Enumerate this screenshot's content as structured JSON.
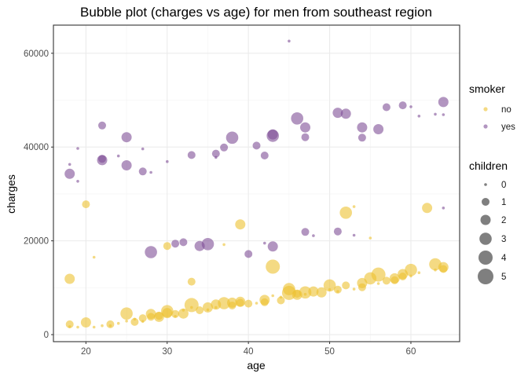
{
  "chart_data": {
    "type": "scatter",
    "title": "Bubble plot (charges vs age) for men from southeast region",
    "xlabel": "age",
    "ylabel": "charges",
    "xlim": [
      16,
      66
    ],
    "ylim": [
      -1500,
      66000
    ],
    "xticks": [
      20,
      30,
      40,
      50,
      60
    ],
    "yticks": [
      0,
      20000,
      40000,
      60000
    ],
    "xtick_labels": [
      "20",
      "30",
      "40",
      "50",
      "60"
    ],
    "ytick_labels": [
      "0",
      "20000",
      "40000",
      "60000"
    ],
    "grid": true,
    "legend_position": "right",
    "colors": {
      "no": "#ecc131",
      "yes": "#7f4f96",
      "overlap": "#8a5a3a",
      "panel_border": "#333333",
      "grid": "#ebebeb"
    },
    "legends": {
      "smoker": {
        "title": "smoker",
        "items": [
          "no",
          "yes"
        ]
      },
      "children": {
        "title": "children",
        "items": [
          "0",
          "1",
          "2",
          "3",
          "4",
          "5"
        ]
      }
    },
    "series": [
      {
        "name": "no",
        "points": [
          [
            18,
            1700,
            0
          ],
          [
            18,
            2200,
            1
          ],
          [
            18,
            11900,
            2
          ],
          [
            19,
            1600,
            0
          ],
          [
            20,
            27800,
            1
          ],
          [
            20,
            2600,
            2
          ],
          [
            21,
            1600,
            0
          ],
          [
            21,
            16500,
            0
          ],
          [
            22,
            1900,
            0
          ],
          [
            23,
            2200,
            1
          ],
          [
            23,
            1900,
            0
          ],
          [
            24,
            2400,
            0
          ],
          [
            25,
            4500,
            3
          ],
          [
            25,
            2900,
            0
          ],
          [
            26,
            3300,
            0
          ],
          [
            26,
            2700,
            1
          ],
          [
            27,
            3500,
            1
          ],
          [
            27,
            2800,
            0
          ],
          [
            28,
            4400,
            2
          ],
          [
            28,
            3800,
            1
          ],
          [
            29,
            3800,
            2
          ],
          [
            29,
            4000,
            1
          ],
          [
            30,
            4600,
            2
          ],
          [
            30,
            5000,
            3
          ],
          [
            30,
            18900,
            1
          ],
          [
            31,
            4400,
            1
          ],
          [
            31,
            3900,
            0
          ],
          [
            32,
            4500,
            2
          ],
          [
            32,
            5200,
            0
          ],
          [
            33,
            6300,
            4
          ],
          [
            33,
            11300,
            1
          ],
          [
            33,
            5800,
            0
          ],
          [
            34,
            5200,
            1
          ],
          [
            35,
            5800,
            2
          ],
          [
            35,
            5300,
            0
          ],
          [
            36,
            6400,
            2
          ],
          [
            36,
            5800,
            0
          ],
          [
            37,
            6700,
            3
          ],
          [
            37,
            19200,
            0
          ],
          [
            38,
            6800,
            2
          ],
          [
            38,
            6200,
            1
          ],
          [
            39,
            7000,
            2
          ],
          [
            39,
            23500,
            2
          ],
          [
            39,
            6800,
            1
          ],
          [
            40,
            6600,
            1
          ],
          [
            41,
            6700,
            0
          ],
          [
            42,
            7400,
            2
          ],
          [
            42,
            6900,
            1
          ],
          [
            43,
            14500,
            4
          ],
          [
            43,
            8300,
            0
          ],
          [
            44,
            7300,
            1
          ],
          [
            44,
            8000,
            0
          ],
          [
            45,
            8900,
            4
          ],
          [
            45,
            9700,
            3
          ],
          [
            46,
            8500,
            2
          ],
          [
            46,
            8700,
            1
          ],
          [
            47,
            9000,
            3
          ],
          [
            47,
            8600,
            0
          ],
          [
            48,
            9200,
            2
          ],
          [
            49,
            9000,
            2
          ],
          [
            50,
            10500,
            3
          ],
          [
            50,
            9600,
            0
          ],
          [
            51,
            9600,
            1
          ],
          [
            51,
            9200,
            0
          ],
          [
            52,
            26000,
            3
          ],
          [
            52,
            10500,
            1
          ],
          [
            53,
            9700,
            0
          ],
          [
            53,
            27300,
            0
          ],
          [
            54,
            11000,
            2
          ],
          [
            54,
            10100,
            1
          ],
          [
            55,
            12000,
            3
          ],
          [
            55,
            20600,
            0
          ],
          [
            56,
            12800,
            4
          ],
          [
            56,
            10900,
            0
          ],
          [
            57,
            11500,
            1
          ],
          [
            58,
            12000,
            2
          ],
          [
            58,
            11600,
            1
          ],
          [
            59,
            12400,
            1
          ],
          [
            59,
            12900,
            2
          ],
          [
            60,
            13800,
            3
          ],
          [
            60,
            12500,
            0
          ],
          [
            61,
            13200,
            0
          ],
          [
            62,
            27000,
            2
          ],
          [
            63,
            15000,
            3
          ],
          [
            63,
            13800,
            0
          ],
          [
            64,
            14400,
            2
          ],
          [
            64,
            14000,
            1
          ]
        ]
      },
      {
        "name": "yes",
        "points": [
          [
            18,
            34300,
            2
          ],
          [
            18,
            36300,
            0
          ],
          [
            19,
            39700,
            0
          ],
          [
            19,
            32700,
            0
          ],
          [
            22,
            44600,
            1
          ],
          [
            22,
            37200,
            2
          ],
          [
            22,
            37500,
            1
          ],
          [
            24,
            38100,
            0
          ],
          [
            25,
            42100,
            2
          ],
          [
            25,
            36100,
            2
          ],
          [
            27,
            34800,
            1
          ],
          [
            27,
            39600,
            0
          ],
          [
            28,
            17600,
            3
          ],
          [
            28,
            34600,
            0
          ],
          [
            30,
            36900,
            0
          ],
          [
            31,
            19400,
            1
          ],
          [
            32,
            19700,
            1
          ],
          [
            33,
            38300,
            1
          ],
          [
            34,
            18900,
            2
          ],
          [
            35,
            19300,
            3
          ],
          [
            36,
            38600,
            1
          ],
          [
            36,
            37800,
            0
          ],
          [
            37,
            39900,
            1
          ],
          [
            38,
            42000,
            3
          ],
          [
            40,
            17200,
            1
          ],
          [
            41,
            40300,
            1
          ],
          [
            42,
            38200,
            1
          ],
          [
            42,
            19500,
            0
          ],
          [
            43,
            42400,
            3
          ],
          [
            43,
            42700,
            2
          ],
          [
            43,
            18800,
            2
          ],
          [
            45,
            62600,
            0
          ],
          [
            46,
            46100,
            3
          ],
          [
            47,
            44200,
            2
          ],
          [
            47,
            42100,
            1
          ],
          [
            47,
            21900,
            1
          ],
          [
            48,
            21100,
            0
          ],
          [
            51,
            47300,
            2
          ],
          [
            51,
            22000,
            1
          ],
          [
            52,
            47100,
            2
          ],
          [
            53,
            21200,
            0
          ],
          [
            54,
            44200,
            2
          ],
          [
            54,
            42000,
            1
          ],
          [
            56,
            43800,
            2
          ],
          [
            57,
            48500,
            1
          ],
          [
            59,
            48900,
            1
          ],
          [
            60,
            48600,
            0
          ],
          [
            61,
            46600,
            0
          ],
          [
            63,
            47000,
            0
          ],
          [
            64,
            49600,
            2
          ],
          [
            64,
            46900,
            0
          ],
          [
            64,
            27000,
            0
          ]
        ]
      }
    ]
  }
}
